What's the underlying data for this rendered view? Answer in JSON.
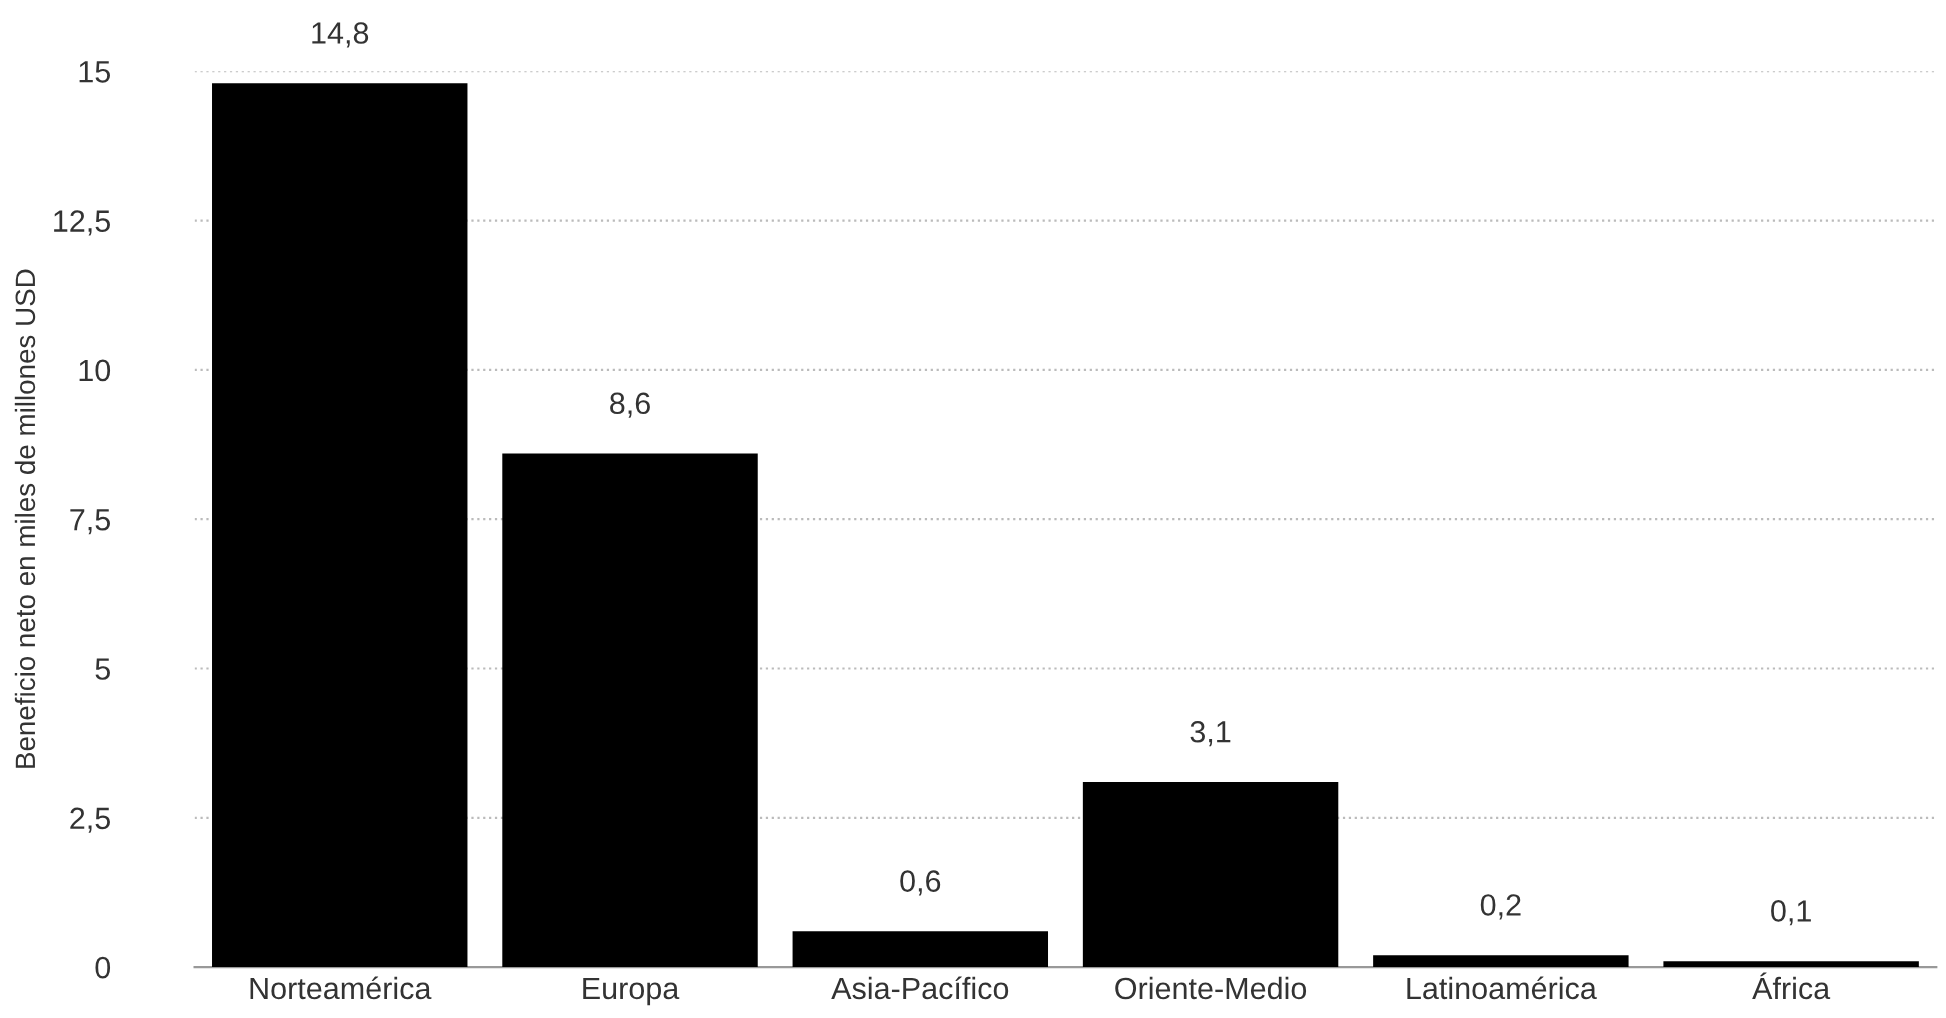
{
  "chart_data": {
    "type": "bar",
    "ylabel": "Beneficio neto en miles de millones USD",
    "categories": [
      "Norteamérica",
      "Europa",
      "Asia-Pacífico",
      "Oriente-Medio",
      "Latinoamérica",
      "África"
    ],
    "values": [
      14.8,
      8.6,
      0.6,
      3.1,
      0.2,
      0.1
    ],
    "value_labels": [
      "14,8",
      "8,6",
      "0,6",
      "3,1",
      "0,2",
      "0,1"
    ],
    "color": "#000000",
    "ylim": [
      0,
      15
    ],
    "yticks": [
      0,
      {
        "value": 2.5,
        "label": "2,5"
      },
      5,
      {
        "value": 7.5,
        "label": "7,5"
      },
      10,
      {
        "value": 12.5,
        "label": "12,5"
      },
      15
    ],
    "grid": "y"
  }
}
